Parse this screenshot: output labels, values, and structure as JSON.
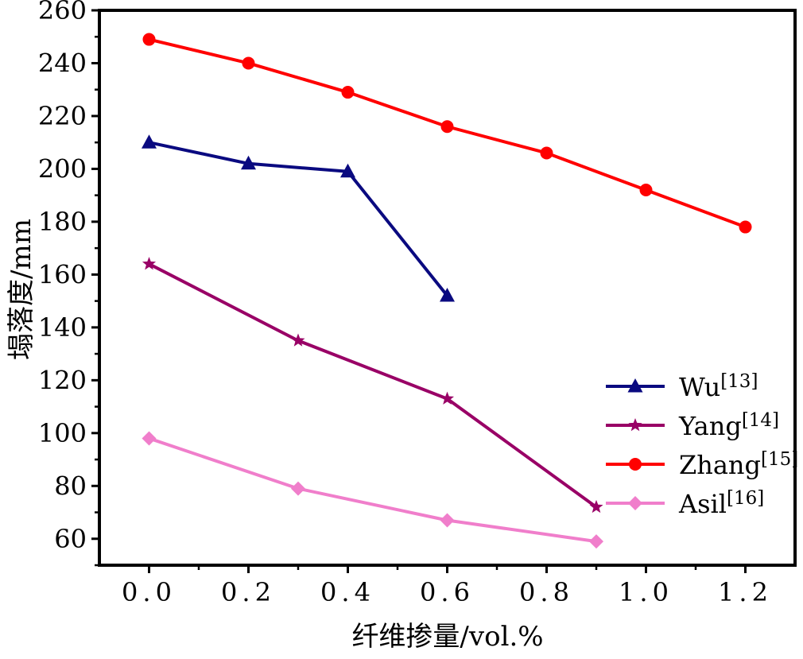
{
  "chart_data": {
    "type": "line",
    "title": "",
    "xlabel": "纤维掺量/vol.%",
    "ylabel": "塌落度/mm",
    "xlim": [
      -0.1,
      1.3
    ],
    "ylim": [
      50,
      260
    ],
    "xticks": [
      0.0,
      0.2,
      0.4,
      0.6,
      0.8,
      1.0,
      1.2
    ],
    "xtick_labels": [
      "0.0",
      "0.2",
      "0.4",
      "0.6",
      "0.8",
      "1.0",
      "1.2"
    ],
    "yticks": [
      60,
      80,
      100,
      120,
      140,
      160,
      180,
      200,
      220,
      240,
      260
    ],
    "ytick_labels": [
      "60",
      "80",
      "100",
      "120",
      "140",
      "160",
      "180",
      "200",
      "220",
      "240",
      "260"
    ],
    "grid": false,
    "legend_position": "bottom-right",
    "series": [
      {
        "name": "Wu",
        "ref": "[13]",
        "color": "#0a0a80",
        "marker": "triangle",
        "x": [
          0.0,
          0.2,
          0.4,
          0.6
        ],
        "y": [
          210,
          202,
          199,
          152
        ]
      },
      {
        "name": "Yang",
        "ref": "[14]",
        "color": "#990066",
        "marker": "star",
        "x": [
          0.0,
          0.3,
          0.6,
          0.9
        ],
        "y": [
          164,
          135,
          113,
          72
        ]
      },
      {
        "name": "Zhang",
        "ref": "[15]",
        "color": "#ff0000",
        "marker": "circle",
        "x": [
          0.0,
          0.2,
          0.4,
          0.6,
          0.8,
          1.0,
          1.2
        ],
        "y": [
          249,
          240,
          229,
          216,
          206,
          192,
          178
        ]
      },
      {
        "name": "Asil",
        "ref": "[16]",
        "color": "#f07ecb",
        "marker": "diamond",
        "x": [
          0.0,
          0.3,
          0.6,
          0.9
        ],
        "y": [
          98,
          79,
          67,
          59
        ]
      }
    ]
  }
}
